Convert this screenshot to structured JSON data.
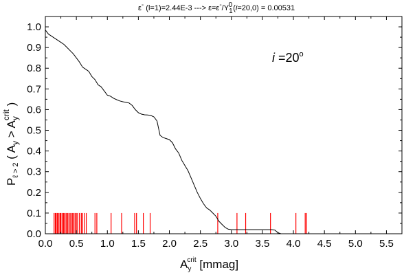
{
  "chart_data": {
    "type": "line",
    "title": {
      "eps": "ε",
      "eps_sup": "-",
      "part1": " (l=1)=2.44E-3  ---> ε=ε",
      "part1_sup": "-",
      "part2": "/Y",
      "part2_sub": "1",
      "part2_sup": "0",
      "part3": "(",
      "part3_i": "i",
      "part3_end": "=20,0) = 0.00531"
    },
    "xlabel": {
      "main": "A",
      "sub": "y",
      "sup": "crit",
      "unit": " [mmag]"
    },
    "ylabel": {
      "main": "P",
      "sub": "ℓ > 2",
      "open": " ( A",
      "sub2": "y",
      "gt": " > A",
      "sub3": "y",
      "sup3": "crit",
      "close": " )"
    },
    "annotation": {
      "italic": "i",
      "rest": " =20",
      "sup": "o"
    },
    "xlim": [
      0.0,
      5.75
    ],
    "ylim": [
      0.0,
      1.05
    ],
    "xticks": [
      "0.0",
      "0.5",
      "1.0",
      "1.5",
      "2.0",
      "2.5",
      "3.0",
      "3.5",
      "4.0",
      "4.5",
      "5.0",
      "5.5"
    ],
    "yticks": [
      "0.0",
      "0.1",
      "0.2",
      "0.3",
      "0.4",
      "0.5",
      "0.6",
      "0.7",
      "0.8",
      "0.9",
      "1.0"
    ],
    "grid": false,
    "line_color": "#000000",
    "marker_color": "#ff0000",
    "series": [
      {
        "x": [
          0.0,
          0.05,
          0.1,
          0.15,
          0.2,
          0.25,
          0.3,
          0.35,
          0.4,
          0.45,
          0.5,
          0.55,
          0.6,
          0.65,
          0.7,
          0.75,
          0.8,
          0.85,
          0.9,
          0.95,
          1.0,
          1.05,
          1.1,
          1.15,
          1.2,
          1.25,
          1.3,
          1.35,
          1.4,
          1.45,
          1.5,
          1.55,
          1.6,
          1.65,
          1.7,
          1.75,
          1.8,
          1.85,
          1.9,
          1.95,
          2.0,
          2.05,
          2.1,
          2.15,
          2.2,
          2.25,
          2.3,
          2.35,
          2.4,
          2.45,
          2.5,
          2.55,
          2.6,
          2.65,
          2.7,
          2.75,
          2.8,
          2.85,
          2.9,
          2.95,
          3.0,
          3.05,
          3.1,
          3.2,
          3.3,
          3.4,
          3.5,
          3.6,
          3.65,
          3.7,
          3.73,
          3.76,
          3.8
        ],
        "values": [
          0.985,
          0.965,
          0.955,
          0.945,
          0.935,
          0.925,
          0.915,
          0.9,
          0.885,
          0.87,
          0.85,
          0.83,
          0.805,
          0.795,
          0.785,
          0.76,
          0.745,
          0.72,
          0.71,
          0.69,
          0.67,
          0.665,
          0.655,
          0.648,
          0.642,
          0.638,
          0.635,
          0.632,
          0.62,
          0.6,
          0.585,
          0.578,
          0.575,
          0.574,
          0.572,
          0.565,
          0.545,
          0.475,
          0.465,
          0.46,
          0.455,
          0.44,
          0.41,
          0.39,
          0.355,
          0.33,
          0.305,
          0.27,
          0.235,
          0.2,
          0.17,
          0.145,
          0.125,
          0.115,
          0.1,
          0.085,
          0.06,
          0.045,
          0.03,
          0.022,
          0.02,
          0.02,
          0.02,
          0.02,
          0.02,
          0.02,
          0.02,
          0.02,
          0.02,
          0.018,
          0.01,
          0.004,
          0.0
        ]
      }
    ],
    "markers": {
      "height": 0.1,
      "x": [
        0.14,
        0.16,
        0.17,
        0.19,
        0.2,
        0.22,
        0.24,
        0.25,
        0.27,
        0.29,
        0.3,
        0.32,
        0.34,
        0.36,
        0.38,
        0.4,
        0.42,
        0.44,
        0.46,
        0.48,
        0.5,
        0.52,
        0.55,
        0.58,
        0.6,
        0.63,
        0.66,
        0.8,
        0.83,
        1.06,
        1.23,
        1.44,
        1.47,
        1.58,
        1.69,
        2.78,
        3.09,
        3.23,
        3.63,
        4.04,
        4.19,
        4.21
      ]
    }
  }
}
